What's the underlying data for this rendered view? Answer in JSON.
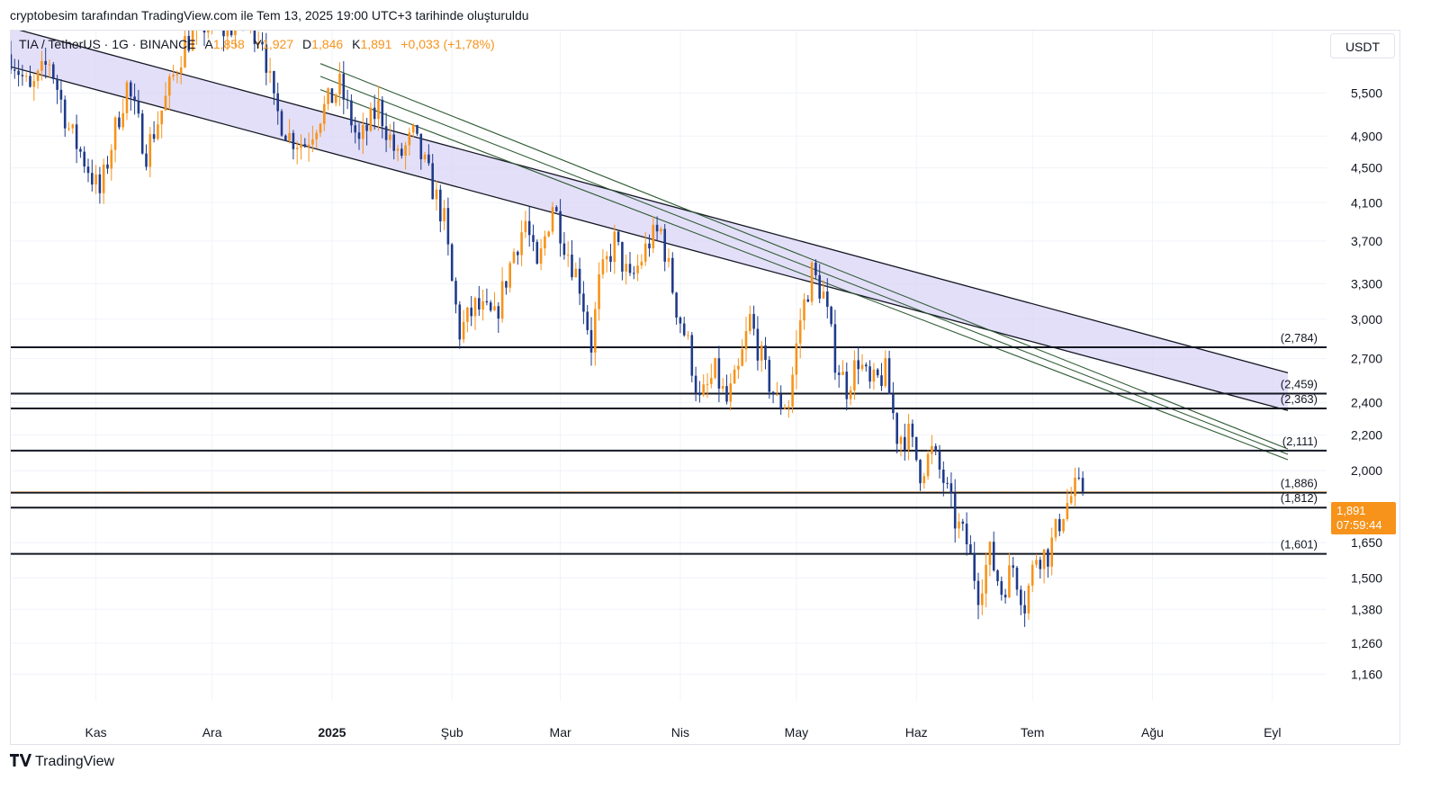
{
  "attribution": "cryptobesim tarafından TradingView.com ile Tem 13, 2025 19:00 UTC+3 tarihinde oluşturuldu",
  "legend": {
    "symbol": "TIA / TetherUS · 1G · BINANCE",
    "open_label": "A",
    "open": "1,858",
    "high_label": "Y",
    "high": "1,927",
    "low_label": "D",
    "low": "1,846",
    "close_label": "K",
    "close": "1,891",
    "change": "+0,033 (+1,78%)"
  },
  "currency": "USDT",
  "last_price": {
    "value": "1,891",
    "countdown": "07:59:44"
  },
  "footer": {
    "brand": "TradingView"
  },
  "colors": {
    "up": "#f7931a",
    "down": "#1e3a8a",
    "channel_fill": "#d9d4f5",
    "line": "#131722",
    "accent": "#f7931a"
  },
  "chart_data": {
    "type": "candlestick",
    "scale": "log",
    "ylim": [
      1.08,
      6.5
    ],
    "y_ticks": [
      5.5,
      4.9,
      4.5,
      4.1,
      3.7,
      3.3,
      3.0,
      2.7,
      2.4,
      2.2,
      2.0,
      1.65,
      1.5,
      1.38,
      1.26,
      1.16
    ],
    "y_tick_labels": [
      "5,500",
      "4,900",
      "4,500",
      "4,100",
      "3,700",
      "3,300",
      "3,000",
      "2,700",
      "2,400",
      "2,200",
      "2,000",
      "1,650",
      "1,500",
      "1,380",
      "1,260",
      "1,160"
    ],
    "x_ticks": [
      {
        "label": "Kas",
        "day": 22
      },
      {
        "label": "Ara",
        "day": 52
      },
      {
        "label": "2025",
        "day": 83,
        "bold": true
      },
      {
        "label": "Şub",
        "day": 114
      },
      {
        "label": "Mar",
        "day": 142
      },
      {
        "label": "Nis",
        "day": 173
      },
      {
        "label": "May",
        "day": 203
      },
      {
        "label": "Haz",
        "day": 234
      },
      {
        "label": "Tem",
        "day": 264
      },
      {
        "label": "Ağu",
        "day": 295
      },
      {
        "label": "Eyl",
        "day": 326
      }
    ],
    "x_range_days": [
      0,
      340
    ],
    "horizontal_levels": [
      {
        "value": 2.784,
        "label": "(2,784)"
      },
      {
        "value": 2.459,
        "label": "(2,459)"
      },
      {
        "value": 2.363,
        "label": "(2,363)"
      },
      {
        "value": 2.111,
        "label": "(2,111)"
      },
      {
        "value": 1.886,
        "label": "(1,886)"
      },
      {
        "value": 1.812,
        "label": "(1,812)"
      },
      {
        "value": 1.601,
        "label": "(1,601)"
      }
    ],
    "channels": [
      {
        "name": "upper-channel",
        "top": [
          [
            0,
            6.55
          ],
          [
            330,
            2.6
          ]
        ],
        "bottom": [
          [
            0,
            5.9
          ],
          [
            330,
            2.35
          ]
        ]
      }
    ],
    "trendlines": [
      {
        "name": "green-line-1",
        "points": [
          [
            80,
            5.95
          ],
          [
            330,
            2.12
          ]
        ]
      },
      {
        "name": "green-line-2",
        "points": [
          [
            80,
            5.75
          ],
          [
            330,
            2.09
          ]
        ]
      },
      {
        "name": "green-line-3",
        "points": [
          [
            80,
            5.55
          ],
          [
            330,
            2.06
          ]
        ]
      }
    ],
    "price_path": [
      [
        0,
        6.1
      ],
      [
        5,
        5.5
      ],
      [
        10,
        6.0
      ],
      [
        15,
        5.0
      ],
      [
        20,
        4.5
      ],
      [
        23,
        4.2
      ],
      [
        27,
        5.0
      ],
      [
        30,
        5.6
      ],
      [
        35,
        4.7
      ],
      [
        40,
        5.4
      ],
      [
        45,
        6.3
      ],
      [
        50,
        6.6
      ],
      [
        55,
        6.5
      ],
      [
        60,
        6.7
      ],
      [
        65,
        6.4
      ],
      [
        68,
        5.3
      ],
      [
        72,
        4.9
      ],
      [
        76,
        4.8
      ],
      [
        80,
        5.2
      ],
      [
        85,
        5.6
      ],
      [
        90,
        4.8
      ],
      [
        95,
        5.3
      ],
      [
        100,
        4.6
      ],
      [
        104,
        4.9
      ],
      [
        108,
        4.4
      ],
      [
        112,
        3.9
      ],
      [
        114,
        3.3
      ],
      [
        116,
        2.9
      ],
      [
        120,
        3.1
      ],
      [
        125,
        3.0
      ],
      [
        130,
        3.6
      ],
      [
        133,
        3.9
      ],
      [
        136,
        3.4
      ],
      [
        140,
        4.1
      ],
      [
        143,
        3.7
      ],
      [
        147,
        3.3
      ],
      [
        150,
        2.8
      ],
      [
        152,
        3.3
      ],
      [
        156,
        3.7
      ],
      [
        160,
        3.3
      ],
      [
        165,
        3.7
      ],
      [
        168,
        3.8
      ],
      [
        172,
        3.1
      ],
      [
        175,
        2.8
      ],
      [
        178,
        2.4
      ],
      [
        182,
        2.6
      ],
      [
        185,
        2.4
      ],
      [
        188,
        2.6
      ],
      [
        191,
        3.0
      ],
      [
        195,
        2.6
      ],
      [
        198,
        2.4
      ],
      [
        201,
        2.4
      ],
      [
        204,
        3.0
      ],
      [
        207,
        3.4
      ],
      [
        210,
        3.2
      ],
      [
        213,
        2.7
      ],
      [
        216,
        2.5
      ],
      [
        219,
        2.7
      ],
      [
        222,
        2.5
      ],
      [
        226,
        2.6
      ],
      [
        229,
        2.2
      ],
      [
        232,
        2.2
      ],
      [
        235,
        2.0
      ],
      [
        238,
        2.1
      ],
      [
        241,
        1.95
      ],
      [
        244,
        1.75
      ],
      [
        247,
        1.65
      ],
      [
        250,
        1.45
      ],
      [
        253,
        1.6
      ],
      [
        256,
        1.45
      ],
      [
        259,
        1.55
      ],
      [
        262,
        1.4
      ],
      [
        265,
        1.6
      ],
      [
        268,
        1.6
      ],
      [
        272,
        1.8
      ],
      [
        275,
        1.9
      ],
      [
        277,
        1.891
      ]
    ]
  }
}
